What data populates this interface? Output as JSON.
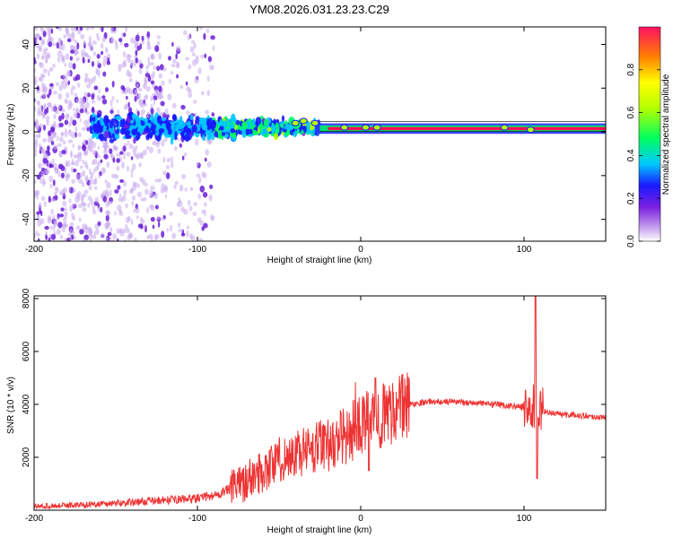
{
  "chart_data": [
    {
      "type": "heatmap",
      "title": "YM08.2026.031.23.23.C29",
      "xlabel": "Height of straight line (km)",
      "ylabel": "Frequency (Hz)",
      "xlim": [
        -200,
        150
      ],
      "ylim": [
        -50,
        48
      ],
      "xticks": [
        -200,
        -100,
        0,
        100
      ],
      "yticks": [
        -40,
        -20,
        0,
        20,
        40
      ],
      "colorbar": {
        "label": "Normalized spectral amplitude",
        "range": [
          0,
          1
        ],
        "ticks": [
          "0.0",
          "0.2",
          "0.4",
          "0.6",
          "0.8"
        ]
      },
      "features": {
        "carrier_frequency_hz": 1.5,
        "carrier_start_km": -20,
        "scatter_extent_km": [
          -200,
          -90
        ],
        "blob_region_km": [
          -160,
          -30
        ]
      }
    },
    {
      "type": "line",
      "xlabel": "Height of straight line (km)",
      "ylabel": "SNR (10 * v/v)",
      "xlim": [
        -200,
        150
      ],
      "ylim": [
        0,
        8100
      ],
      "xticks": [
        -200,
        -100,
        0,
        100
      ],
      "yticks": [
        2000,
        4000,
        6000,
        8000
      ],
      "color": "#ee3333",
      "series": [
        {
          "name": "SNR",
          "x": [
            -200,
            -180,
            -160,
            -140,
            -120,
            -100,
            -90,
            -80,
            -70,
            -60,
            -50,
            -40,
            -30,
            -20,
            -10,
            0,
            10,
            20,
            30,
            40,
            50,
            60,
            70,
            80,
            90,
            100,
            104,
            107,
            110,
            115,
            120,
            130,
            140,
            150
          ],
          "y": [
            150,
            180,
            230,
            300,
            380,
            450,
            550,
            800,
            1100,
            1500,
            1900,
            2100,
            2300,
            2500,
            2800,
            3200,
            3500,
            3800,
            4000,
            4100,
            4100,
            4100,
            4050,
            4000,
            3950,
            3900,
            3800,
            3900,
            3750,
            3700,
            3650,
            3600,
            3550,
            3500
          ]
        }
      ],
      "spikes": [
        {
          "x": 107,
          "y": 8100
        },
        {
          "x": 108,
          "y": 1200
        },
        {
          "x": 9,
          "y": 5000
        },
        {
          "x": 5,
          "y": 1500
        }
      ]
    }
  ]
}
